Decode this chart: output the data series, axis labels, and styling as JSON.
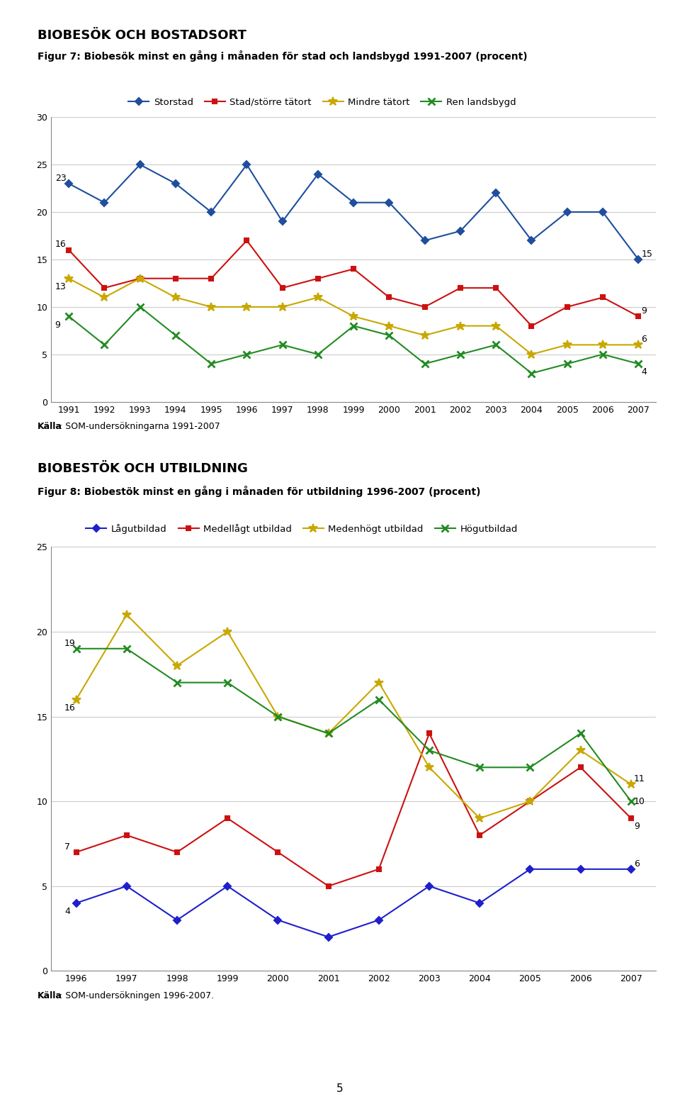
{
  "chart1": {
    "section_title": "BIOBESÖK OCH BOSTADSORT",
    "fig_title": "Figur 7: Biobesök minst en gång i månaden för stad och landsbygd 1991-2007 (procent)",
    "years": [
      1991,
      1992,
      1993,
      1994,
      1995,
      1996,
      1997,
      1998,
      1999,
      2000,
      2001,
      2002,
      2003,
      2004,
      2005,
      2006,
      2007
    ],
    "storstad": [
      23,
      21,
      25,
      23,
      20,
      25,
      19,
      24,
      21,
      21,
      17,
      18,
      22,
      17,
      20,
      20,
      15
    ],
    "stad": [
      16,
      12,
      13,
      13,
      13,
      17,
      12,
      13,
      14,
      11,
      10,
      12,
      12,
      8,
      10,
      11,
      9
    ],
    "mindre": [
      13,
      11,
      13,
      11,
      10,
      10,
      10,
      11,
      9,
      8,
      7,
      8,
      8,
      5,
      6,
      6,
      6
    ],
    "ren": [
      9,
      6,
      10,
      7,
      4,
      5,
      6,
      5,
      8,
      7,
      4,
      5,
      6,
      3,
      4,
      5,
      4
    ],
    "legend_labels": [
      "Storstad",
      "Stad/större tätort",
      "Mindre tätort",
      "Ren landsbygd"
    ],
    "colors": [
      "#1F4E9E",
      "#CC1111",
      "#C8A800",
      "#228B22"
    ],
    "ylim": [
      0,
      30
    ],
    "yticks": [
      0,
      5,
      10,
      15,
      20,
      25,
      30
    ],
    "source_bold": "Källa",
    "source_rest": ": SOM-undersökningarna 1991-2007",
    "annot_start": [
      [
        "23",
        1991,
        23,
        -14,
        3
      ],
      [
        "16",
        1991,
        16,
        -14,
        3
      ],
      [
        "13",
        1991,
        13,
        -14,
        -11
      ],
      [
        "9",
        1991,
        9,
        -14,
        -11
      ]
    ],
    "annot_end": [
      [
        "15",
        2007,
        15,
        3,
        3
      ],
      [
        "9",
        2007,
        9,
        3,
        3
      ],
      [
        "6",
        2007,
        6,
        3,
        3
      ],
      [
        "4",
        2007,
        4,
        3,
        -11
      ]
    ]
  },
  "chart2": {
    "section_title": "BIOBESTÖK OCH UTBILDNING",
    "fig_title": "Figur 8: Biobestök minst en gång i månaden för utbildning 1996-2007 (procent)",
    "years": [
      1996,
      1997,
      1998,
      1999,
      2000,
      2001,
      2002,
      2003,
      2004,
      2005,
      2006,
      2007
    ],
    "lag": [
      4,
      5,
      3,
      5,
      3,
      2,
      3,
      5,
      4,
      6,
      6,
      6
    ],
    "medellågt": [
      7,
      8,
      7,
      9,
      7,
      5,
      6,
      14,
      8,
      10,
      12,
      9
    ],
    "medelhögt": [
      16,
      21,
      18,
      20,
      15,
      14,
      17,
      12,
      9,
      10,
      13,
      11
    ],
    "hög": [
      19,
      19,
      17,
      17,
      15,
      14,
      16,
      13,
      12,
      12,
      14,
      10
    ],
    "legend_labels": [
      "Lågutbildad",
      "Medellågt utbildad",
      "Medenhögt utbildad",
      "Högutbildad"
    ],
    "colors": [
      "#1F1FCC",
      "#CC1111",
      "#C8A800",
      "#228B22"
    ],
    "ylim": [
      0,
      25
    ],
    "yticks": [
      0,
      5,
      10,
      15,
      20,
      25
    ],
    "source_bold": "Källa",
    "source_rest": ": SOM-undersökningen 1996-2007.",
    "annot_start": [
      [
        "4",
        1996,
        4,
        -12,
        -11
      ],
      [
        "7",
        1996,
        7,
        -12,
        3
      ],
      [
        "16",
        1996,
        16,
        -12,
        -11
      ],
      [
        "19",
        1996,
        19,
        -12,
        3
      ]
    ],
    "annot_end": [
      [
        "6",
        2007,
        6,
        3,
        3
      ],
      [
        "9",
        2007,
        9,
        3,
        -11
      ],
      [
        "11",
        2007,
        11,
        3,
        3
      ],
      [
        "10",
        2007,
        10,
        3,
        -3
      ]
    ]
  },
  "page_number": "5"
}
